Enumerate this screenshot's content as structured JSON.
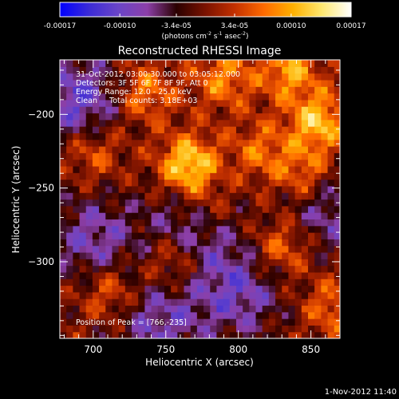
{
  "chart_data": {
    "type": "heatmap",
    "title": "Reconstructed RHESSI Image",
    "xlabel": "Heliocentric X (arcsec)",
    "ylabel": "Heliocentric Y (arcsec)",
    "xlim": [
      677,
      870
    ],
    "ylim": [
      -352,
      -163
    ],
    "x_ticks": [
      700,
      750,
      800,
      850
    ],
    "y_ticks": [
      -200,
      -250,
      -300
    ],
    "colorbar": {
      "label_main": "(photons cm",
      "label_exp1": "-2",
      "label_mid": " s",
      "label_exp2": "-1",
      "label_end": " asec",
      "label_exp3": "-2",
      "label_close": ")",
      "range": [
        -0.00017,
        0.00017
      ],
      "ticks": [
        {
          "value": -0.00017,
          "label": "-0.00017",
          "row": 1
        },
        {
          "value": -0.0001,
          "label": "-0.00010",
          "row": 1
        },
        {
          "value": -3.4e-05,
          "label": "-3.4e-05",
          "row": 1
        },
        {
          "value": 3.4e-05,
          "label": "3.4e-05",
          "row": 1
        },
        {
          "value": 0.0001,
          "label": "0.00010",
          "row": 1
        },
        {
          "value": 0.00017,
          "label": "0.00017",
          "row": 1
        }
      ],
      "colormap": [
        "#0000ff",
        "#3b2bd6",
        "#6a45c8",
        "#8c3fa8",
        "#2a0000",
        "#7a1200",
        "#c33000",
        "#ff6a00",
        "#ffb000",
        "#ffe870",
        "#ffffff"
      ]
    },
    "annotations": [
      "31-Oct-2012 03:00:30.000 to 03:05:12.000",
      "Detectors: 3F 5F 6F 7F 8F 9F, Att 0",
      "Energy Range: 12.0 - 25.0 keV",
      "Clean     Total counts: 3.18E+03"
    ],
    "peak_label": "Position of Peak = [766,-235]",
    "peak": {
      "x": 766,
      "y": -235
    },
    "hotspots": [
      {
        "x": 766,
        "y": -235,
        "v": 1.0
      },
      {
        "x": 855,
        "y": -205,
        "v": 0.8
      },
      {
        "x": 735,
        "y": -185,
        "v": 0.55
      },
      {
        "x": 790,
        "y": -175,
        "v": 0.55
      },
      {
        "x": 835,
        "y": -170,
        "v": 0.65
      },
      {
        "x": 845,
        "y": -240,
        "v": 0.55
      },
      {
        "x": 700,
        "y": -225,
        "v": 0.45
      },
      {
        "x": 712,
        "y": -320,
        "v": 0.5
      },
      {
        "x": 755,
        "y": -300,
        "v": 0.5
      },
      {
        "x": 830,
        "y": -290,
        "v": 0.55
      },
      {
        "x": 865,
        "y": -330,
        "v": 0.45
      },
      {
        "x": 780,
        "y": -265,
        "v": 0.4
      },
      {
        "x": 815,
        "y": -225,
        "v": 0.45
      }
    ],
    "coldspots": [
      {
        "x": 690,
        "y": -190,
        "v": 0.7
      },
      {
        "x": 770,
        "y": -275,
        "v": 0.6
      },
      {
        "x": 800,
        "y": -320,
        "v": 0.6
      },
      {
        "x": 700,
        "y": -285,
        "v": 0.55
      },
      {
        "x": 860,
        "y": -265,
        "v": 0.5
      },
      {
        "x": 745,
        "y": -340,
        "v": 0.55
      }
    ]
  },
  "footer": {
    "timestamp": "1-Nov-2012 11:40"
  }
}
